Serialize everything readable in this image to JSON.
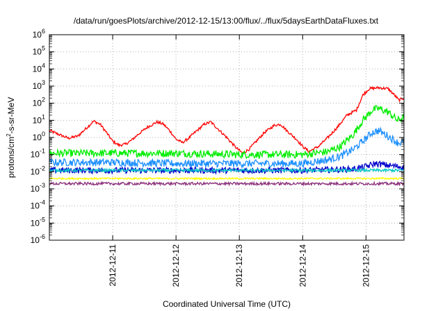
{
  "chart_data": {
    "type": "line",
    "title": "/data/run/goesPlots/archive/2012-12-15/13:00/flux/../flux/5daysEarthDataFluxes.txt",
    "xlabel": "Coordinated Universal Time (UTC)",
    "ylabel_parts": {
      "main": "protons/cm",
      "sup": "2",
      "rest": "-s-sr-MeV"
    },
    "x_range": [
      0.0,
      5.6
    ],
    "x_ticks": [
      {
        "x": 1,
        "label": "2012-12-11"
      },
      {
        "x": 2,
        "label": "2012-12-12"
      },
      {
        "x": 3,
        "label": "2012-12-13"
      },
      {
        "x": 4,
        "label": "2012-12-14"
      },
      {
        "x": 5,
        "label": "2012-12-15"
      }
    ],
    "y_scale": "log",
    "y_range": [
      1e-06,
      1000000.0
    ],
    "y_ticks": [
      {
        "exp": -6,
        "base": "10",
        "sup": "-6"
      },
      {
        "exp": -5,
        "base": "10",
        "sup": "-5"
      },
      {
        "exp": -4,
        "base": "10",
        "sup": "-4"
      },
      {
        "exp": -3,
        "base": "10",
        "sup": "-3"
      },
      {
        "exp": -2,
        "base": "10",
        "sup": "-2"
      },
      {
        "exp": -1,
        "base": "10",
        "sup": "-1"
      },
      {
        "exp": 0,
        "base": "10",
        "sup": "0"
      },
      {
        "exp": 1,
        "base": "10",
        "sup": "1"
      },
      {
        "exp": 2,
        "base": "10",
        "sup": "2"
      },
      {
        "exp": 3,
        "base": "10",
        "sup": "3"
      },
      {
        "exp": 4,
        "base": "10",
        "sup": "4"
      },
      {
        "exp": 5,
        "base": "10",
        "sup": "5"
      },
      {
        "exp": 6,
        "base": "10",
        "sup": "6"
      }
    ],
    "grid": true,
    "series": [
      {
        "color": "#ff0000",
        "noise": 0.08,
        "points": [
          [
            0.0,
            2.5
          ],
          [
            0.15,
            1.5
          ],
          [
            0.3,
            0.9
          ],
          [
            0.45,
            1.2
          ],
          [
            0.6,
            4.0
          ],
          [
            0.7,
            9.0
          ],
          [
            0.8,
            6.0
          ],
          [
            0.9,
            2.0
          ],
          [
            1.0,
            0.6
          ],
          [
            1.1,
            0.35
          ],
          [
            1.2,
            0.4
          ],
          [
            1.3,
            0.7
          ],
          [
            1.4,
            1.5
          ],
          [
            1.55,
            4.0
          ],
          [
            1.7,
            8.0
          ],
          [
            1.8,
            6.0
          ],
          [
            1.9,
            2.5
          ],
          [
            2.0,
            0.8
          ],
          [
            2.1,
            0.5
          ],
          [
            2.2,
            0.9
          ],
          [
            2.3,
            2.0
          ],
          [
            2.45,
            6.0
          ],
          [
            2.55,
            8.0
          ],
          [
            2.65,
            3.5
          ],
          [
            2.8,
            1.0
          ],
          [
            2.95,
            0.25
          ],
          [
            3.05,
            0.12
          ],
          [
            3.15,
            0.2
          ],
          [
            3.3,
            0.8
          ],
          [
            3.4,
            2.0
          ],
          [
            3.55,
            5.0
          ],
          [
            3.65,
            6.0
          ],
          [
            3.75,
            2.5
          ],
          [
            3.9,
            0.8
          ],
          [
            4.0,
            0.3
          ],
          [
            4.1,
            0.15
          ],
          [
            4.25,
            0.3
          ],
          [
            4.4,
            1.0
          ],
          [
            4.55,
            4.0
          ],
          [
            4.7,
            20.0
          ],
          [
            4.85,
            40.0
          ],
          [
            4.95,
            300.0
          ],
          [
            5.05,
            700.0
          ],
          [
            5.2,
            800.0
          ],
          [
            5.35,
            700.0
          ],
          [
            5.45,
            300.0
          ],
          [
            5.52,
            150.0
          ],
          [
            5.6,
            200.0
          ]
        ]
      },
      {
        "color": "#00ee00",
        "noise": 0.22,
        "points": [
          [
            0.0,
            0.12
          ],
          [
            1.0,
            0.12
          ],
          [
            2.0,
            0.12
          ],
          [
            3.0,
            0.1
          ],
          [
            4.0,
            0.1
          ],
          [
            4.4,
            0.15
          ],
          [
            4.6,
            0.3
          ],
          [
            4.8,
            1.5
          ],
          [
            4.95,
            10.0
          ],
          [
            5.1,
            40.0
          ],
          [
            5.2,
            50.0
          ],
          [
            5.35,
            30.0
          ],
          [
            5.5,
            10.0
          ],
          [
            5.6,
            15.0
          ]
        ]
      },
      {
        "color": "#1e90ff",
        "noise": 0.22,
        "points": [
          [
            0.0,
            0.035
          ],
          [
            1.0,
            0.035
          ],
          [
            2.0,
            0.03
          ],
          [
            3.0,
            0.03
          ],
          [
            4.0,
            0.03
          ],
          [
            4.4,
            0.05
          ],
          [
            4.6,
            0.08
          ],
          [
            4.8,
            0.2
          ],
          [
            4.95,
            0.6
          ],
          [
            5.1,
            2.0
          ],
          [
            5.2,
            2.5
          ],
          [
            5.35,
            1.2
          ],
          [
            5.5,
            0.5
          ],
          [
            5.6,
            0.5
          ]
        ]
      },
      {
        "color": "#0000cc",
        "noise": 0.18,
        "points": [
          [
            0.0,
            0.012
          ],
          [
            2.0,
            0.012
          ],
          [
            4.0,
            0.012
          ],
          [
            4.8,
            0.014
          ],
          [
            5.0,
            0.02
          ],
          [
            5.15,
            0.03
          ],
          [
            5.3,
            0.025
          ],
          [
            5.6,
            0.018
          ]
        ]
      },
      {
        "color": "#00c8c8",
        "noise": 0.08,
        "points": [
          [
            0.0,
            0.012
          ],
          [
            5.6,
            0.012
          ]
        ]
      },
      {
        "color": "#ffff00",
        "noise": 0.05,
        "points": [
          [
            0.0,
            0.004
          ],
          [
            5.6,
            0.004
          ]
        ]
      },
      {
        "color": "#8b2f7a",
        "noise": 0.08,
        "points": [
          [
            0.0,
            0.002
          ],
          [
            5.6,
            0.002
          ]
        ]
      }
    ]
  }
}
